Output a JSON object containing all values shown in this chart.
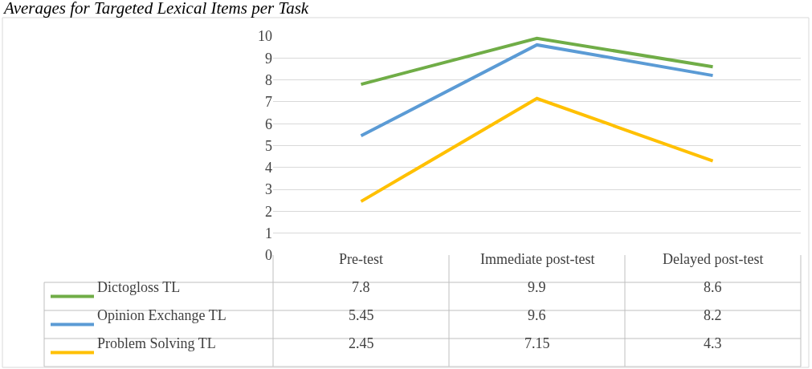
{
  "chart_data": {
    "type": "line",
    "title": "Averages for Targeted Lexical Items per Task",
    "categories": [
      "Pre-test",
      "Immediate post-test",
      "Delayed post-test"
    ],
    "series": [
      {
        "name": "Dictogloss TL",
        "color": "#70ad47",
        "values": [
          7.8,
          9.9,
          8.6
        ]
      },
      {
        "name": "Opinion Exchange TL",
        "color": "#5b9bd5",
        "values": [
          5.45,
          9.6,
          8.2
        ]
      },
      {
        "name": "Problem Solving TL",
        "color": "#ffc000",
        "values": [
          2.45,
          7.15,
          4.3
        ]
      }
    ],
    "ylim": [
      0,
      10
    ],
    "yticks": [
      0,
      1,
      2,
      3,
      4,
      5,
      6,
      7,
      8,
      9,
      10
    ],
    "grid": "y",
    "legend": "bottom left",
    "data_labels": true,
    "marker": "none",
    "line_style": "solid"
  }
}
